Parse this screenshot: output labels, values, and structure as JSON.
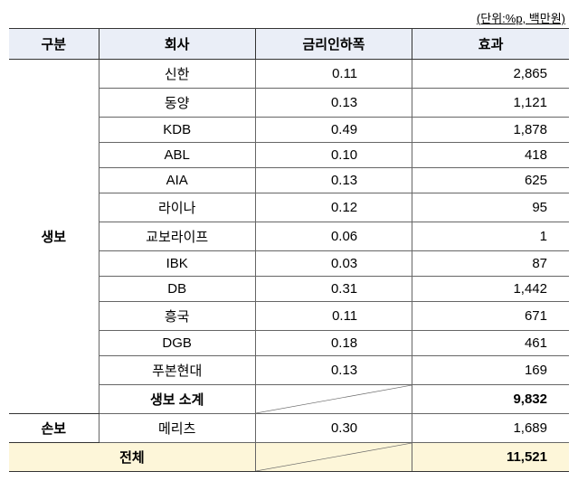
{
  "unit_note": "(단위:%p, 백만원)",
  "headers": {
    "category": "구분",
    "company": "회사",
    "rate": "금리인하폭",
    "effect": "효과"
  },
  "groups": [
    {
      "category": "생보",
      "rows": [
        {
          "company": "신한",
          "rate": "0.11",
          "effect": "2,865"
        },
        {
          "company": "동양",
          "rate": "0.13",
          "effect": "1,121"
        },
        {
          "company": "KDB",
          "rate": "0.49",
          "effect": "1,878"
        },
        {
          "company": "ABL",
          "rate": "0.10",
          "effect": "418"
        },
        {
          "company": "AIA",
          "rate": "0.13",
          "effect": "625"
        },
        {
          "company": "라이나",
          "rate": "0.12",
          "effect": "95"
        },
        {
          "company": "교보라이프",
          "rate": "0.06",
          "effect": "1"
        },
        {
          "company": "IBK",
          "rate": "0.03",
          "effect": "87"
        },
        {
          "company": "DB",
          "rate": "0.31",
          "effect": "1,442"
        },
        {
          "company": "흥국",
          "rate": "0.11",
          "effect": "671"
        },
        {
          "company": "DGB",
          "rate": "0.18",
          "effect": "461"
        },
        {
          "company": "푸본현대",
          "rate": "0.13",
          "effect": "169"
        }
      ],
      "subtotal": {
        "label": "생보 소계",
        "effect": "9,832"
      }
    },
    {
      "category": "손보",
      "rows": [
        {
          "company": "메리츠",
          "rate": "0.30",
          "effect": "1,689"
        }
      ]
    }
  ],
  "total": {
    "label": "전체",
    "effect": "11,521"
  }
}
